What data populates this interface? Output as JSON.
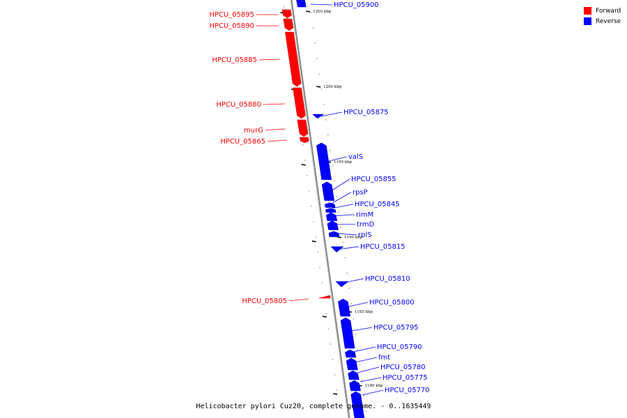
{
  "caption": "Helicobacter pylori Cuz20, complete genome. - 0..1635449",
  "legend": [
    {
      "label": "Forward",
      "color": "#ff0000"
    },
    {
      "label": "Reverse",
      "color": "#0000ff"
    }
  ],
  "colors": {
    "forward": "#ff0000",
    "reverse": "#0000ff",
    "backbone": "#888888"
  },
  "position_labels": [
    "1205 kbp",
    "1200 kbp",
    "1195 kbp",
    "1190 kbp",
    "1185 kbp",
    "1180 kbp"
  ],
  "genes": [
    {
      "name": "HPCU_05900",
      "strand": "reverse"
    },
    {
      "name": "HPCU_05895",
      "strand": "forward"
    },
    {
      "name": "HPCU_05890",
      "strand": "forward"
    },
    {
      "name": "HPCU_05885",
      "strand": "forward"
    },
    {
      "name": "HPCU_05880",
      "strand": "forward"
    },
    {
      "name": "HPCU_05875",
      "strand": "reverse"
    },
    {
      "name": "murG",
      "strand": "forward"
    },
    {
      "name": "HPCU_05865",
      "strand": "forward"
    },
    {
      "name": "valS",
      "strand": "reverse"
    },
    {
      "name": "HPCU_05855",
      "strand": "reverse"
    },
    {
      "name": "rpsP",
      "strand": "reverse"
    },
    {
      "name": "HPCU_05845",
      "strand": "reverse"
    },
    {
      "name": "rimM",
      "strand": "reverse"
    },
    {
      "name": "trmD",
      "strand": "reverse"
    },
    {
      "name": "rplS",
      "strand": "reverse"
    },
    {
      "name": "HPCU_05815",
      "strand": "reverse"
    },
    {
      "name": "HPCU_05810",
      "strand": "reverse"
    },
    {
      "name": "HPCU_05805",
      "strand": "forward"
    },
    {
      "name": "HPCU_05800",
      "strand": "reverse"
    },
    {
      "name": "HPCU_05795",
      "strand": "reverse"
    },
    {
      "name": "HPCU_05790",
      "strand": "reverse"
    },
    {
      "name": "fmt",
      "strand": "reverse"
    },
    {
      "name": "HPCU_05780",
      "strand": "reverse"
    },
    {
      "name": "HPCU_05775",
      "strand": "reverse"
    },
    {
      "name": "HPCU_05770",
      "strand": "reverse"
    }
  ]
}
